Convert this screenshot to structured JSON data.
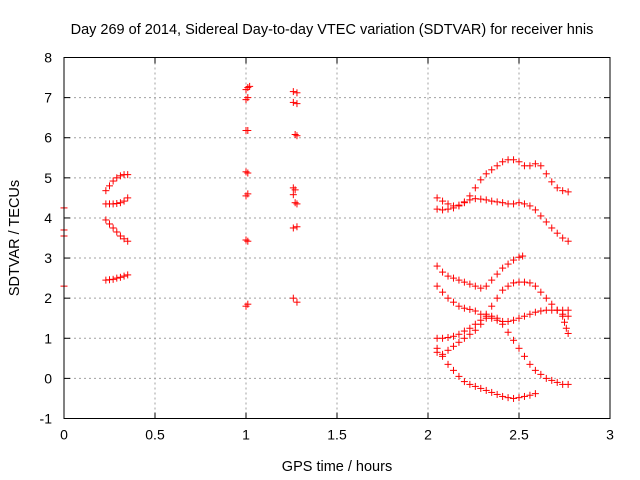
{
  "chart_data": {
    "type": "scatter",
    "title": "Day 269 of 2014, Sidereal Day-to-day VTEC variation (SDTVAR) for receiver hnis",
    "xlabel": "GPS time / hours",
    "ylabel": "SDTVAR / TECUs",
    "xlim": [
      0,
      3
    ],
    "ylim": [
      -1,
      8
    ],
    "xticks": [
      0,
      0.5,
      1,
      1.5,
      2,
      2.5,
      3
    ],
    "yticks": [
      -1,
      0,
      1,
      2,
      3,
      4,
      5,
      6,
      7,
      8
    ],
    "xtick_labels": [
      "0",
      "0.5",
      "1",
      "1.5",
      "2",
      "2.5",
      "3"
    ],
    "ytick_labels": [
      "-1",
      "0",
      "1",
      "2",
      "3",
      "4",
      "5",
      "6",
      "7",
      "8"
    ],
    "grid": true,
    "marker": "plus",
    "marker_color": "#ff0000",
    "series": [
      {
        "x": [
          0.0,
          0.0,
          0.0,
          0.0
        ],
        "y": [
          4.25,
          3.7,
          3.55,
          2.3
        ]
      },
      {
        "x": [
          0.23,
          0.25,
          0.27,
          0.29,
          0.31,
          0.33,
          0.35
        ],
        "y": [
          4.68,
          4.8,
          4.92,
          5.0,
          5.05,
          5.08,
          5.08
        ]
      },
      {
        "x": [
          0.23,
          0.25,
          0.27,
          0.29,
          0.31,
          0.33,
          0.35
        ],
        "y": [
          4.35,
          4.35,
          4.35,
          4.36,
          4.38,
          4.42,
          4.5
        ]
      },
      {
        "x": [
          0.23,
          0.25,
          0.27,
          0.29,
          0.31,
          0.33,
          0.35
        ],
        "y": [
          3.95,
          3.85,
          3.75,
          3.65,
          3.55,
          3.48,
          3.42
        ]
      },
      {
        "x": [
          0.23,
          0.25,
          0.27,
          0.29,
          0.31,
          0.33,
          0.35
        ],
        "y": [
          2.45,
          2.46,
          2.47,
          2.5,
          2.52,
          2.55,
          2.58
        ]
      },
      {
        "x": [
          1.0,
          1.01,
          1.02,
          1.0,
          1.01,
          1.0,
          1.01,
          1.0,
          1.01,
          1.0,
          1.01,
          1.0,
          1.01
        ],
        "y": [
          7.2,
          7.25,
          7.28,
          6.95,
          7.0,
          6.18,
          6.18,
          5.15,
          5.12,
          4.55,
          4.6,
          3.45,
          3.42
        ]
      },
      {
        "x": [
          1.0,
          1.01
        ],
        "y": [
          1.8,
          1.85
        ]
      },
      {
        "x": [
          1.26,
          1.28,
          1.26,
          1.28,
          1.27,
          1.28,
          1.26,
          1.27,
          1.26,
          1.28,
          1.27,
          1.26,
          1.28,
          1.26,
          1.28
        ],
        "y": [
          7.15,
          7.12,
          6.88,
          6.85,
          6.08,
          6.05,
          4.75,
          4.7,
          4.58,
          4.35,
          4.38,
          3.75,
          3.78,
          2.0,
          1.9
        ]
      },
      {
        "x": [
          2.05,
          2.08,
          2.11,
          2.14,
          2.17,
          2.2,
          2.23,
          2.26,
          2.29,
          2.32,
          2.35,
          2.38,
          2.41,
          2.44,
          2.47,
          2.5,
          2.53,
          2.56,
          2.59,
          2.62,
          2.65,
          2.68,
          2.71,
          2.74,
          2.77
        ],
        "y": [
          4.22,
          4.2,
          4.22,
          4.25,
          4.3,
          4.4,
          4.55,
          4.75,
          4.95,
          5.1,
          5.2,
          5.3,
          5.4,
          5.45,
          5.45,
          5.4,
          5.3,
          5.3,
          5.35,
          5.3,
          5.1,
          4.9,
          4.75,
          4.68,
          4.65
        ]
      },
      {
        "x": [
          2.05,
          2.08,
          2.11,
          2.14,
          2.17,
          2.2,
          2.23,
          2.26,
          2.29,
          2.32,
          2.35,
          2.38,
          2.41,
          2.44,
          2.47,
          2.5,
          2.53,
          2.56,
          2.59,
          2.62,
          2.65,
          2.68,
          2.71,
          2.74,
          2.77
        ],
        "y": [
          4.5,
          4.42,
          4.35,
          4.3,
          4.32,
          4.38,
          4.45,
          4.48,
          4.47,
          4.45,
          4.42,
          4.4,
          4.38,
          4.35,
          4.35,
          4.38,
          4.35,
          4.3,
          4.2,
          4.05,
          3.9,
          3.75,
          3.62,
          3.5,
          3.42
        ]
      },
      {
        "x": [
          2.05,
          2.08,
          2.11,
          2.14,
          2.17,
          2.2,
          2.23,
          2.26,
          2.29,
          2.32,
          2.35,
          2.38,
          2.41,
          2.44,
          2.47,
          2.5,
          2.52
        ],
        "y": [
          2.8,
          2.65,
          2.55,
          2.5,
          2.45,
          2.4,
          2.35,
          2.3,
          2.25,
          2.3,
          2.45,
          2.6,
          2.75,
          2.85,
          2.95,
          3.02,
          3.05
        ]
      },
      {
        "x": [
          2.05,
          2.08,
          2.11,
          2.14,
          2.17,
          2.2,
          2.23,
          2.26,
          2.29,
          2.32,
          2.35,
          2.38,
          2.41,
          2.44,
          2.47,
          2.5,
          2.53,
          2.56,
          2.59,
          2.62,
          2.65,
          2.68,
          2.71,
          2.74,
          2.77
        ],
        "y": [
          2.3,
          2.15,
          2.0,
          1.9,
          1.8,
          1.75,
          1.72,
          1.68,
          1.6,
          1.55,
          1.5,
          1.45,
          1.42,
          1.42,
          1.45,
          1.5,
          1.55,
          1.6,
          1.65,
          1.68,
          1.7,
          1.7,
          1.7,
          1.7,
          1.7
        ]
      },
      {
        "x": [
          2.74,
          2.75,
          2.76,
          2.77
        ],
        "y": [
          1.55,
          1.4,
          1.25,
          1.12
        ]
      },
      {
        "x": [
          2.05,
          2.08,
          2.11,
          2.14,
          2.17,
          2.2,
          2.23,
          2.26,
          2.29,
          2.32,
          2.35,
          2.38,
          2.41,
          2.44,
          2.47,
          2.5,
          2.53,
          2.56,
          2.59,
          2.62,
          2.65,
          2.68,
          2.71,
          2.74,
          2.77
        ],
        "y": [
          1.0,
          1.0,
          1.02,
          1.05,
          1.1,
          1.18,
          1.25,
          1.35,
          1.45,
          1.6,
          1.8,
          2.0,
          2.2,
          2.3,
          2.38,
          2.4,
          2.4,
          2.38,
          2.3,
          2.15,
          2.0,
          1.85,
          1.7,
          1.6,
          1.55
        ]
      },
      {
        "x": [
          2.05,
          2.08,
          2.11,
          2.14,
          2.17,
          2.2,
          2.23,
          2.26,
          2.29,
          2.32,
          2.35,
          2.38,
          2.41,
          2.44,
          2.47,
          2.5,
          2.53,
          2.56,
          2.59,
          2.62,
          2.65,
          2.68,
          2.71,
          2.74,
          2.77
        ],
        "y": [
          0.65,
          0.6,
          0.7,
          0.8,
          0.9,
          1.0,
          1.1,
          1.2,
          1.35,
          1.5,
          1.55,
          1.5,
          1.35,
          1.15,
          0.95,
          0.75,
          0.55,
          0.35,
          0.2,
          0.1,
          0.0,
          -0.05,
          -0.1,
          -0.15,
          -0.15
        ]
      },
      {
        "x": [
          2.05,
          2.08,
          2.11,
          2.14,
          2.17,
          2.2,
          2.23,
          2.26,
          2.29,
          2.32,
          2.35,
          2.38,
          2.41,
          2.44,
          2.47,
          2.5,
          2.53,
          2.56,
          2.59
        ],
        "y": [
          0.75,
          0.55,
          0.35,
          0.2,
          0.05,
          -0.08,
          -0.15,
          -0.2,
          -0.25,
          -0.3,
          -0.35,
          -0.4,
          -0.45,
          -0.48,
          -0.5,
          -0.48,
          -0.45,
          -0.42,
          -0.38
        ]
      }
    ]
  }
}
